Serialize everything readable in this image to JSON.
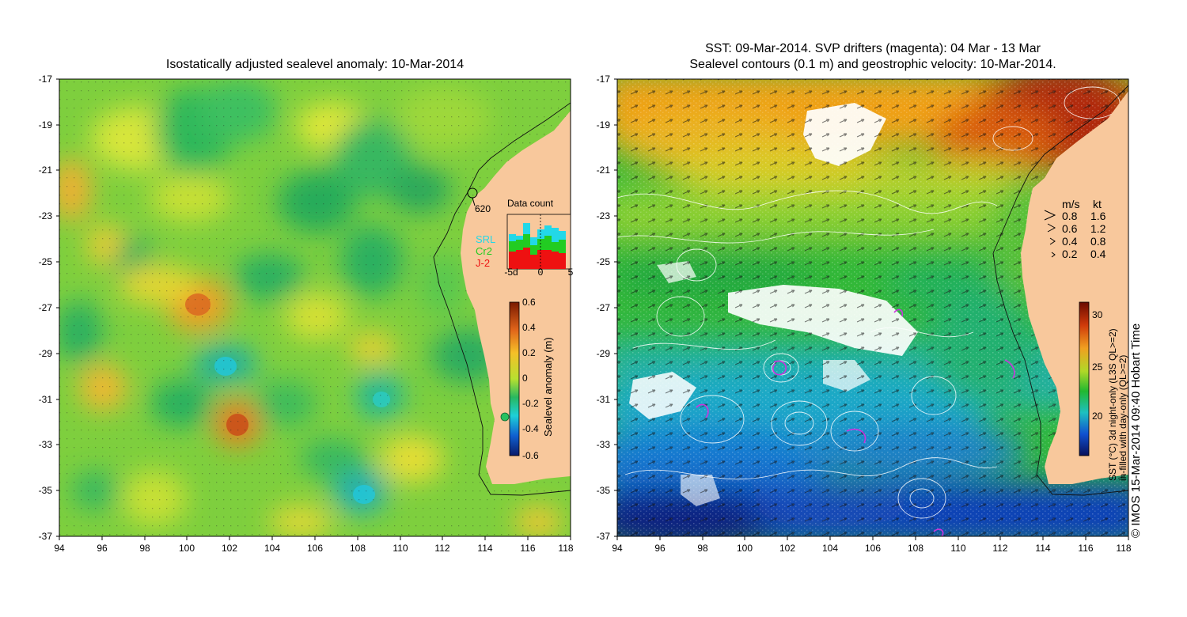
{
  "left_panel": {
    "title": "Isostatically adjusted sealevel anomaly: 10-Mar-2014",
    "y_ticks": [
      "-17",
      "-19",
      "-21",
      "-23",
      "-25",
      "-27",
      "-29",
      "-31",
      "-33",
      "-35",
      "-37"
    ],
    "x_ticks": [
      "94",
      "96",
      "98",
      "100",
      "102",
      "104",
      "106",
      "108",
      "110",
      "112",
      "114",
      "116",
      "118"
    ],
    "station_label": "620",
    "data_count": {
      "title": "Data count",
      "series_labels": [
        "SRL",
        "Cr2",
        "J-2"
      ],
      "series_colors": [
        "#22d8e8",
        "#22cc22",
        "#ee1111"
      ],
      "x_ticks": [
        "-5d",
        "0",
        "5"
      ]
    },
    "colorbar": {
      "label": "Sealevel anomaly (m)",
      "ticks": [
        "0.6",
        "0.4",
        "0.2",
        "0",
        "-0.2",
        "-0.4",
        "-0.6"
      ]
    }
  },
  "right_panel": {
    "title_line1": "SST: 09-Mar-2014. SVP drifters (magenta): 04 Mar - 13 Mar",
    "title_line2": "Sealevel contours (0.1 m) and geostrophic velocity: 10-Mar-2014.",
    "y_ticks": [
      "-17",
      "-19",
      "-21",
      "-23",
      "-25",
      "-27",
      "-29",
      "-31",
      "-33",
      "-35",
      "-37"
    ],
    "x_ticks": [
      "94",
      "96",
      "98",
      "100",
      "102",
      "104",
      "106",
      "108",
      "110",
      "112",
      "114",
      "116",
      "118"
    ],
    "velocity_legend": {
      "headers": [
        "m/s",
        "kt"
      ],
      "rows": [
        [
          "0.8",
          "1.6"
        ],
        [
          "0.6",
          "1.2"
        ],
        [
          "0.4",
          "0.8"
        ],
        [
          "0.2",
          "0.4"
        ]
      ]
    },
    "colorbar": {
      "label_line1": "SST (°C) 3d night-only (L3S QL>=2)",
      "label_line2": "in-filled with day-only (QL>=2)",
      "ticks": [
        "30",
        "25",
        "20"
      ]
    }
  },
  "credit": "© IMOS 15-Mar-2014 09:40 Hobart Time"
}
